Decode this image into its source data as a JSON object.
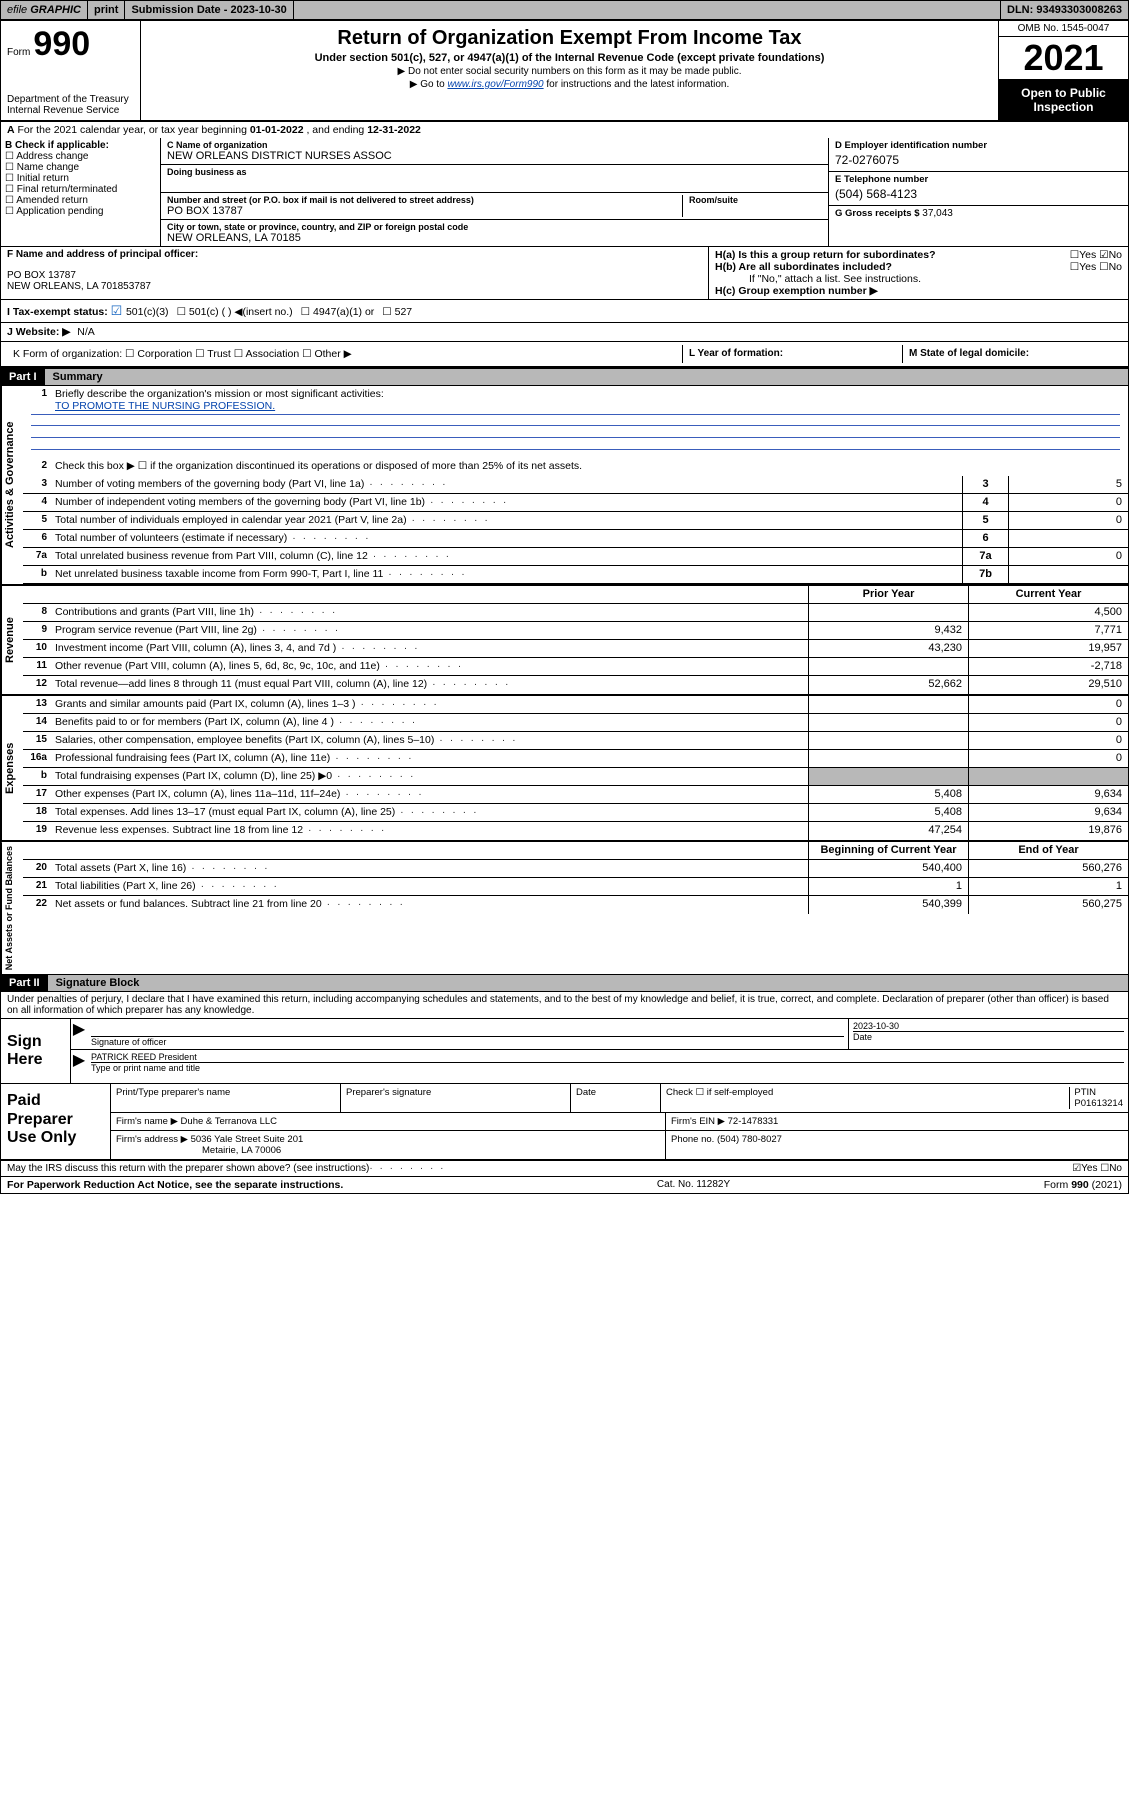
{
  "topbar": {
    "efile_prefix": "efile",
    "efile_btn1": "GRAPHIC",
    "efile_btn2": "print",
    "submission_label": "Submission Date - 2023-10-30",
    "dln": "DLN: 93493303008263"
  },
  "header": {
    "form_label": "Form",
    "form_number": "990",
    "dept": "Department of the Treasury\nInternal Revenue Service",
    "main_title": "Return of Organization Exempt From Income Tax",
    "subtitle": "Under section 501(c), 527, or 4947(a)(1) of the Internal Revenue Code (except private foundations)",
    "note1": "Do not enter social security numbers on this form as it may be made public.",
    "note2_pre": "Go to ",
    "note2_link": "www.irs.gov/Form990",
    "note2_post": " for instructions and the latest information.",
    "omb": "OMB No. 1545-0047",
    "year": "2021",
    "inspection": "Open to Public Inspection"
  },
  "line_a": {
    "label_a": "A",
    "text": "For the 2021 calendar year, or tax year beginning ",
    "begin": "01-01-2022",
    "mid": " , and ending ",
    "end": "12-31-2022"
  },
  "col_b": {
    "hdr": "B Check if applicable:",
    "items": [
      "Address change",
      "Name change",
      "Initial return",
      "Final return/terminated",
      "Amended return",
      "Application pending"
    ]
  },
  "col_c": {
    "name_label": "C Name of organization",
    "name": "NEW ORLEANS DISTRICT NURSES ASSOC",
    "dba_label": "Doing business as",
    "dba": "",
    "addr_label": "Number and street (or P.O. box if mail is not delivered to street address)",
    "room_label": "Room/suite",
    "addr": "PO BOX 13787",
    "city_label": "City or town, state or province, country, and ZIP or foreign postal code",
    "city": "NEW ORLEANS, LA  70185"
  },
  "col_d": {
    "d_label": "D Employer identification number",
    "d_val": "72-0276075",
    "e_label": "E Telephone number",
    "e_val": "(504) 568-4123",
    "g_label": "G Gross receipts $",
    "g_val": "37,043"
  },
  "row_f": {
    "f_label": "F Name and address of principal officer:",
    "f_addr": "PO BOX 13787\nNEW ORLEANS, LA  701853787"
  },
  "row_h": {
    "ha": "H(a)  Is this a group return for subordinates?",
    "ha_ans": "☐Yes  ☑No",
    "hb": "H(b)  Are all subordinates included?",
    "hb_ans": "☐Yes  ☐No",
    "hb_note": "If \"No,\" attach a list. See instructions.",
    "hc": "H(c)  Group exemption number ▶"
  },
  "row_i": {
    "label": "I  Tax-exempt status:",
    "opts": [
      "501(c)(3)",
      "501(c) (   ) ◀(insert no.)",
      "4947(a)(1) or",
      "527"
    ],
    "checked_index": 0
  },
  "row_j": {
    "label": "J  Website: ▶",
    "val": "N/A"
  },
  "row_k": {
    "k": "K Form of organization:  ☐ Corporation  ☐ Trust  ☐ Association  ☐ Other ▶",
    "l_label": "L Year of formation:",
    "l_val": "",
    "m_label": "M State of legal domicile:",
    "m_val": ""
  },
  "part1": {
    "part_label": "Part I",
    "title": "Summary",
    "vlabel_gov": "Activities & Governance",
    "vlabel_rev": "Revenue",
    "vlabel_exp": "Expenses",
    "vlabel_net": "Net Assets or Fund Balances",
    "q1": "Briefly describe the organization's mission or most significant activities:",
    "mission": "TO PROMOTE THE NURSING PROFESSION.",
    "q2": "Check this box ▶ ☐  if the organization discontinued its operations or disposed of more than 25% of its net assets.",
    "rows_single": [
      {
        "n": "3",
        "d": "Number of voting members of the governing body (Part VI, line 1a)",
        "box": "3",
        "val": "5"
      },
      {
        "n": "4",
        "d": "Number of independent voting members of the governing body (Part VI, line 1b)",
        "box": "4",
        "val": "0"
      },
      {
        "n": "5",
        "d": "Total number of individuals employed in calendar year 2021 (Part V, line 2a)",
        "box": "5",
        "val": "0"
      },
      {
        "n": "6",
        "d": "Total number of volunteers (estimate if necessary)",
        "box": "6",
        "val": ""
      },
      {
        "n": "7a",
        "d": "Total unrelated business revenue from Part VIII, column (C), line 12",
        "box": "7a",
        "val": "0"
      },
      {
        "n": "b",
        "d": "Net unrelated business taxable income from Form 990-T, Part I, line 11",
        "box": "7b",
        "val": ""
      }
    ],
    "hdr_prior": "Prior Year",
    "hdr_curr": "Current Year",
    "rows_revenue": [
      {
        "n": "8",
        "d": "Contributions and grants (Part VIII, line 1h)",
        "prior": "",
        "curr": "4,500"
      },
      {
        "n": "9",
        "d": "Program service revenue (Part VIII, line 2g)",
        "prior": "9,432",
        "curr": "7,771"
      },
      {
        "n": "10",
        "d": "Investment income (Part VIII, column (A), lines 3, 4, and 7d )",
        "prior": "43,230",
        "curr": "19,957"
      },
      {
        "n": "11",
        "d": "Other revenue (Part VIII, column (A), lines 5, 6d, 8c, 9c, 10c, and 11e)",
        "prior": "",
        "curr": "-2,718"
      },
      {
        "n": "12",
        "d": "Total revenue—add lines 8 through 11 (must equal Part VIII, column (A), line 12)",
        "prior": "52,662",
        "curr": "29,510"
      }
    ],
    "rows_expenses": [
      {
        "n": "13",
        "d": "Grants and similar amounts paid (Part IX, column (A), lines 1–3 )",
        "prior": "",
        "curr": "0"
      },
      {
        "n": "14",
        "d": "Benefits paid to or for members (Part IX, column (A), line 4 )",
        "prior": "",
        "curr": "0"
      },
      {
        "n": "15",
        "d": "Salaries, other compensation, employee benefits (Part IX, column (A), lines 5–10)",
        "prior": "",
        "curr": "0"
      },
      {
        "n": "16a",
        "d": "Professional fundraising fees (Part IX, column (A), line 11e)",
        "prior": "",
        "curr": "0"
      },
      {
        "n": "b",
        "d": "Total fundraising expenses (Part IX, column (D), line 25) ▶0",
        "prior": "GREY",
        "curr": "GREY"
      },
      {
        "n": "17",
        "d": "Other expenses (Part IX, column (A), lines 11a–11d, 11f–24e)",
        "prior": "5,408",
        "curr": "9,634"
      },
      {
        "n": "18",
        "d": "Total expenses. Add lines 13–17 (must equal Part IX, column (A), line 25)",
        "prior": "5,408",
        "curr": "9,634"
      },
      {
        "n": "19",
        "d": "Revenue less expenses. Subtract line 18 from line 12",
        "prior": "47,254",
        "curr": "19,876"
      }
    ],
    "hdr_beg": "Beginning of Current Year",
    "hdr_end": "End of Year",
    "rows_net": [
      {
        "n": "20",
        "d": "Total assets (Part X, line 16)",
        "prior": "540,400",
        "curr": "560,276"
      },
      {
        "n": "21",
        "d": "Total liabilities (Part X, line 26)",
        "prior": "1",
        "curr": "1"
      },
      {
        "n": "22",
        "d": "Net assets or fund balances. Subtract line 21 from line 20",
        "prior": "540,399",
        "curr": "560,275"
      }
    ]
  },
  "part2": {
    "part_label": "Part II",
    "title": "Signature Block",
    "declaration": "Under penalties of perjury, I declare that I have examined this return, including accompanying schedules and statements, and to the best of my knowledge and belief, it is true, correct, and complete. Declaration of preparer (other than officer) is based on all information of which preparer has any knowledge.",
    "sign_here": "Sign Here",
    "sig_officer_label": "Signature of officer",
    "sig_date_val": "2023-10-30",
    "sig_date_label": "Date",
    "sig_name": "PATRICK REED President",
    "sig_name_label": "Type or print name and title",
    "paid_label": "Paid Preparer Use Only",
    "row1": {
      "c1": "Print/Type preparer's name",
      "c2": "Preparer's signature",
      "c3": "Date",
      "c4a": "Check ☐ if self-employed",
      "c4b_lab": "PTIN",
      "c4b_val": "P01613214"
    },
    "firm_name_lab": "Firm's name    ▶",
    "firm_name": "Duhe & Terranova LLC",
    "firm_ein_lab": "Firm's EIN ▶",
    "firm_ein": "72-1478331",
    "firm_addr_lab": "Firm's address ▶",
    "firm_addr1": "5036 Yale Street Suite 201",
    "firm_addr2": "Metairie, LA  70006",
    "phone_lab": "Phone no.",
    "phone": "(504) 780-8027",
    "discuss": "May the IRS discuss this return with the preparer shown above? (see instructions)",
    "discuss_ans": "☑Yes  ☐No"
  },
  "footer": {
    "left": "For Paperwork Reduction Act Notice, see the separate instructions.",
    "mid": "Cat. No. 11282Y",
    "right": "Form 990 (2021)"
  },
  "colors": {
    "grey": "#b8b8b8",
    "link": "#0645ad",
    "rule": "#3a5dbb",
    "check_blue": "#1565c0"
  }
}
